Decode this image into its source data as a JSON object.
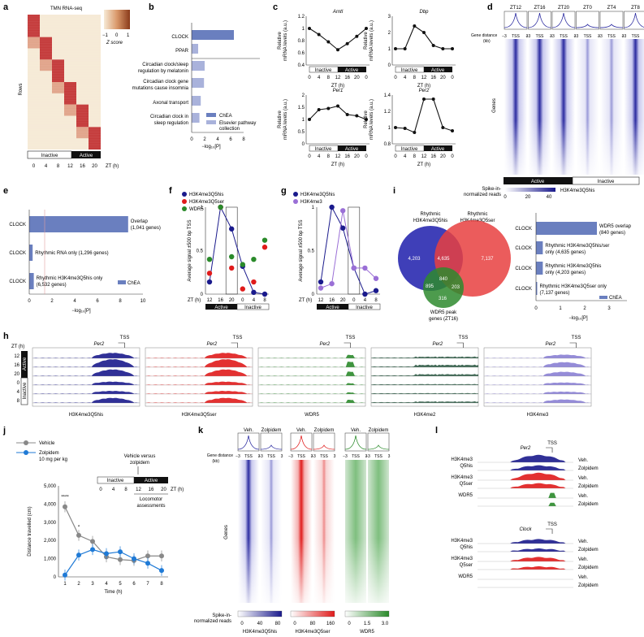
{
  "colors": {
    "blue": "#1a1a8c",
    "red": "#e01b1b",
    "green": "#2a8a2a",
    "darkgreen": "#2d5a44",
    "lavender": "#8a7fd4",
    "purple": "#9a6fd6",
    "chea": "#6a7fbf",
    "elsevier": "#a9b2db",
    "heat_red": "#c43a3a",
    "heat_cream": "#f6ead6",
    "grey_line": "#888888",
    "zolp_blue": "#1f7ad6"
  },
  "panels": {
    "a": {
      "label": "a",
      "title": "TMN RNA-seq",
      "ylabel": "Rows",
      "legend_title": "Z score",
      "legend_min": "−1",
      "legend_mid": "0",
      "legend_max": "1",
      "inactive": "Inactive",
      "active": "Active",
      "xticks": [
        "0",
        "4",
        "8",
        "12",
        "16",
        "20"
      ],
      "xunit": "ZT (h)"
    },
    "b": {
      "label": "b",
      "xlabel": "−log₁₀[P]",
      "legend_a": "ChEA",
      "legend_b": "Elsevier pathway collection",
      "legend_b1": "Elsevier pathway",
      "legend_b2": "collection",
      "xticks": [
        "0",
        "2",
        "4",
        "6",
        "8"
      ],
      "terms": [
        {
          "line1": "CLOCK",
          "line2": "",
          "value": 6.5,
          "src": "chea"
        },
        {
          "line1": "PPAR",
          "line2": "",
          "value": 1.0,
          "src": "elsevier"
        },
        {
          "line1": "Circadian clock/sleep",
          "line2": "regulation by melatonin",
          "value": 2.0,
          "src": "elsevier"
        },
        {
          "line1": "Circadian clock gene",
          "line2": "mutations cause insomnia",
          "value": 1.9,
          "src": "elsevier"
        },
        {
          "line1": "Axonal transport",
          "line2": "",
          "value": 1.4,
          "src": "elsevier"
        },
        {
          "line1": "Circadian clock in",
          "line2": "sleep regulation",
          "value": 1.2,
          "src": "elsevier"
        }
      ]
    },
    "c": {
      "label": "c",
      "ylabel1": "Relative",
      "ylabel2": "mRNA levels (a.u.)",
      "xunit": "ZT (h)",
      "inactive": "Inactive",
      "active": "Active",
      "xticks": [
        "0",
        "4",
        "8",
        "12",
        "16",
        "20",
        "0"
      ]
    },
    "d": {
      "label": "d",
      "conds": [
        "ZT12",
        "ZT16",
        "ZT20",
        "ZT0",
        "ZT4",
        "ZT8"
      ],
      "gene_distance": "Gene distance (kb)",
      "gene_distance1": "Gene distance",
      "gene_distance2": "(kb)",
      "ticks": [
        "−3",
        "TSS",
        "3"
      ],
      "genes": "Genes",
      "active": "Active",
      "inactive": "Inactive",
      "spike1": "Spike-in-",
      "spike2": "normalized reads",
      "cb_ticks": [
        "0",
        "20",
        "40"
      ],
      "cb_label": "H3K4me3Q5his"
    },
    "e": {
      "label": "e",
      "xlabel": "−log₁₀[P]",
      "legend": "ChEA",
      "xticks": [
        "0",
        "2",
        "4",
        "6",
        "8",
        "10"
      ],
      "rows": [
        {
          "term": "CLOCK",
          "text1": "Overlap",
          "text2": "(1,041 genes)",
          "value": 8.7
        },
        {
          "term": "CLOCK",
          "text1": "Rhythmic RNA only (1,296 genes)",
          "text2": "",
          "value": 0.3
        },
        {
          "term": "CLOCK",
          "text1": "Rhythmic H3K4me3Q5his only",
          "text2": "(6,532 genes)",
          "value": 0.4
        }
      ]
    },
    "f": {
      "label": "f",
      "legend": [
        "H3K4me3Q5his",
        "H3K4me3Q5ser",
        "WDR5"
      ],
      "ylabel1": "Average signal ±500 bp TSS",
      "ylabel2": "",
      "xunit": "ZT (h)",
      "xticks": [
        "12",
        "16",
        "20",
        "0",
        "4",
        "8"
      ],
      "yticks": [
        "0",
        "0.5",
        "1"
      ],
      "active": "Active",
      "inactive": "Inactive"
    },
    "g": {
      "label": "g",
      "legend": [
        "H3K4me3Q5his",
        "H3K4me3"
      ],
      "ylabel1": "Average signal ±500 bp TSS",
      "xunit": "ZT (h)",
      "xticks": [
        "12",
        "16",
        "20",
        "0",
        "4",
        "8"
      ],
      "yticks": [
        "0",
        "0.5",
        "1"
      ],
      "active": "Active",
      "inactive": "Inactive"
    },
    "i": {
      "label": "i",
      "venn_a1": "Rhythmic",
      "venn_a2": "H3K4me3Q5his",
      "venn_b1": "Rhythmic",
      "venn_b2": "H3K4me3Q5ser",
      "venn_c1": "WDR5 peak",
      "venn_c2": "genes (ZT16)",
      "n_a": "4,203",
      "n_ab": "4,635",
      "n_b": "7,137",
      "n_ac": "895",
      "n_abc": "840",
      "n_bc": "203",
      "n_c": "316",
      "xlabel": "−log₁₀[P]",
      "xticks": [
        "0",
        "1",
        "2",
        "3"
      ],
      "legend": "ChEA",
      "rows": [
        {
          "term": "CLOCK",
          "text1": "WDR5 overlap",
          "text2": "(840 genes)",
          "value": 2.5
        },
        {
          "term": "CLOCK",
          "text1": "Rhythmic H3K4me3Q5his/ser",
          "text2": "only (4,635 genes)",
          "value": 0.28
        },
        {
          "term": "CLOCK",
          "text1": "Rhythmic H3K4me3Q5his",
          "text2": "only (4,203 genes)",
          "value": 0.28
        },
        {
          "term": "CLOCK",
          "text1": "Rhythmic H3K4me3Q5ser only",
          "text2": "(7,137 genes)",
          "value": 0.05
        }
      ]
    },
    "h": {
      "label": "h",
      "zt": "ZT (h)",
      "rows": [
        "12",
        "16",
        "20",
        "0",
        "4",
        "8"
      ],
      "active": "Active",
      "inactive": "Inactive",
      "gene": "Per2",
      "tss": "TSS",
      "tracks": [
        "H3K4me3Q5his",
        "H3K4me3Q5ser",
        "WDR5",
        "H3K4me2",
        "H3K4me3"
      ]
    },
    "j": {
      "label": "j",
      "legend_vehicle": "Vehicle",
      "legend_zolp1": "Zolpidem",
      "legend_zolp2": "10 mg per kg",
      "vs1": "Vehicle versus",
      "vs2": "zolpidem",
      "inactive": "Inactive",
      "active": "Active",
      "zt_ticks": [
        "0",
        "4",
        "8",
        "12",
        "16",
        "20"
      ],
      "zt_unit": "ZT (h)",
      "loco1": "Locomotor",
      "loco2": "assessments",
      "ylabel": "Distance travelled (cm)",
      "xlabel": "Time (h)",
      "yticks": [
        "0",
        "1,000",
        "2,000",
        "3,000",
        "4,000",
        "5,000"
      ],
      "stars": [
        "****",
        "*"
      ]
    },
    "k": {
      "label": "k",
      "head": [
        "Veh.",
        "Zolpidem",
        "Veh.",
        "Zolpidem",
        "Veh.",
        "Zolpidem"
      ],
      "gene_distance1": "Gene distance",
      "gene_distance2": "(kb)",
      "ticks": [
        "−3",
        "TSS",
        "3"
      ],
      "genes": "Genes",
      "spike1": "Spike-in-",
      "spike2": "normalized reads",
      "cb1_ticks": [
        "0",
        "40",
        "80"
      ],
      "cb1_label": "H3K4me3Q5his",
      "cb2_ticks": [
        "0",
        "80",
        "160"
      ],
      "cb2_label": "H3K4me3Q5ser",
      "cb3_ticks": [
        "0",
        "1.5",
        "3.0"
      ],
      "cb3_label": "WDR5"
    },
    "l": {
      "label": "l",
      "gene1": "Per2",
      "gene2": "Clock",
      "tss": "TSS",
      "marks": [
        {
          "l1": "H3K4me3",
          "l2": "Q5his"
        },
        {
          "l1": "H3K4me3",
          "l2": "Q5ser"
        },
        {
          "l1": "WDR5",
          "l2": ""
        }
      ],
      "veh": "Veh.",
      "zolp": "Zolpidem"
    }
  },
  "chart_data": [
    {
      "type": "bar",
      "panel": "b",
      "categories": [
        "CLOCK",
        "PPAR",
        "Circadian clock/sleep regulation by melatonin",
        "Circadian clock gene mutations cause insomnia",
        "Axonal transport",
        "Circadian clock in sleep regulation"
      ],
      "values": [
        6.5,
        1.0,
        2.0,
        1.9,
        1.4,
        1.2
      ],
      "xlabel": "−log₁₀[P]",
      "xlim": [
        0,
        8
      ]
    },
    {
      "type": "line",
      "panel": "c",
      "series": [
        {
          "name": "Arntl",
          "x": [
            0,
            4,
            8,
            12,
            16,
            20,
            24
          ],
          "values": [
            1.0,
            0.9,
            0.78,
            0.65,
            0.75,
            0.87,
            1.0
          ],
          "ylim": [
            0.4,
            1.2
          ]
        },
        {
          "name": "Dbp",
          "x": [
            0,
            4,
            8,
            12,
            16,
            20,
            24
          ],
          "values": [
            1.0,
            1.0,
            2.4,
            2.0,
            1.2,
            1.0,
            1.0
          ],
          "ylim": [
            0,
            3
          ]
        },
        {
          "name": "Per1",
          "x": [
            0,
            4,
            8,
            12,
            16,
            20,
            24
          ],
          "values": [
            1.0,
            1.4,
            1.45,
            1.55,
            1.2,
            1.15,
            1.0
          ],
          "ylim": [
            0,
            2
          ]
        },
        {
          "name": "Per2",
          "x": [
            0,
            4,
            8,
            12,
            16,
            20,
            24
          ],
          "values": [
            1.0,
            0.99,
            0.94,
            1.35,
            1.35,
            1.0,
            0.96
          ],
          "ylim": [
            0.8,
            1.4
          ]
        }
      ],
      "xlabel": "ZT (h)",
      "ylabel": "Relative mRNA levels (a.u.)"
    },
    {
      "type": "bar",
      "panel": "e",
      "categories": [
        "Overlap (1,041 genes)",
        "Rhythmic RNA only (1,296 genes)",
        "Rhythmic H3K4me3Q5his only (6,532 genes)"
      ],
      "values": [
        8.7,
        0.3,
        0.4
      ],
      "xlabel": "−log₁₀[P]",
      "xlim": [
        0,
        10
      ]
    },
    {
      "type": "scatter",
      "panel": "f",
      "categories": [
        "12",
        "16",
        "20",
        "0",
        "4",
        "8"
      ],
      "series": [
        {
          "name": "H3K4me3Q5his",
          "values": [
            0.14,
            1.0,
            0.75,
            0.32,
            0.02,
            0.0
          ]
        },
        {
          "name": "H3K4me3Q5ser",
          "values": [
            0.24,
            1.0,
            0.3,
            0.06,
            0.14,
            0.54
          ]
        },
        {
          "name": "WDR5",
          "values": [
            0.4,
            1.0,
            0.43,
            0.34,
            0.4,
            0.62
          ]
        }
      ],
      "xlabel": "ZT (h)",
      "ylabel": "Average signal ±500 bp TSS",
      "ylim": [
        0,
        1
      ]
    },
    {
      "type": "scatter",
      "panel": "g",
      "categories": [
        "12",
        "16",
        "20",
        "0",
        "4",
        "8"
      ],
      "series": [
        {
          "name": "H3K4me3Q5his",
          "values": [
            0.14,
            1.0,
            0.76,
            0.3,
            0.0,
            0.04
          ]
        },
        {
          "name": "H3K4me3",
          "values": [
            0.07,
            0.12,
            0.96,
            0.3,
            0.3,
            0.18
          ]
        }
      ],
      "xlabel": "ZT (h)",
      "ylabel": "Average signal ±500 bp TSS",
      "ylim": [
        0,
        1
      ]
    },
    {
      "type": "bar",
      "panel": "i",
      "categories": [
        "WDR5 overlap (840 genes)",
        "Rhythmic H3K4me3Q5his/ser only (4,635 genes)",
        "Rhythmic H3K4me3Q5his only (4,203 genes)",
        "Rhythmic H3K4me3Q5ser only (7,137 genes)"
      ],
      "values": [
        2.5,
        0.28,
        0.28,
        0.05
      ],
      "xlabel": "−log₁₀[P]",
      "xlim": [
        0,
        3
      ]
    },
    {
      "type": "line",
      "panel": "j",
      "x": [
        1,
        2,
        3,
        4,
        5,
        6,
        7,
        8
      ],
      "series": [
        {
          "name": "Vehicle",
          "values": [
            3850,
            2280,
            1950,
            1100,
            950,
            900,
            1150,
            1150
          ]
        },
        {
          "name": "Zolpidem",
          "values": [
            100,
            1200,
            1500,
            1280,
            1380,
            1000,
            750,
            350
          ]
        }
      ],
      "xlabel": "Time (h)",
      "ylabel": "Distance travelled (cm)",
      "ylim": [
        0,
        5000
      ]
    }
  ]
}
